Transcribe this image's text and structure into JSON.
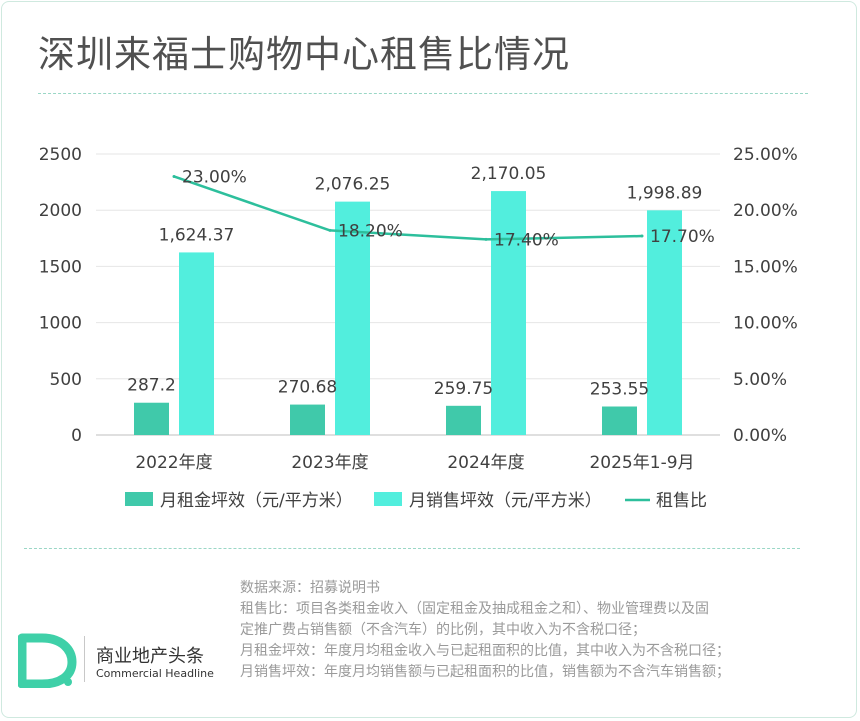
{
  "title": "深圳来福士购物中心租售比情况",
  "chart_data": {
    "type": "bar+line",
    "categories": [
      "2022年度",
      "2023年度",
      "2024年度",
      "2025年1-9月"
    ],
    "series": [
      {
        "name": "月租金坪效（元/平方米）",
        "type": "bar",
        "axis": "left",
        "color": "#40c9aa",
        "values": [
          287.2,
          270.68,
          259.75,
          253.55
        ],
        "labels": [
          "287.2",
          "270.68",
          "259.75",
          "253.55"
        ]
      },
      {
        "name": "月销售坪效（元/平方米）",
        "type": "bar",
        "axis": "left",
        "color": "#52eedd",
        "values": [
          1624.37,
          2076.25,
          2170.05,
          1998.89
        ],
        "labels": [
          "1,624.37",
          "2,076.25",
          "2,170.05",
          "1,998.89"
        ]
      },
      {
        "name": "租售比",
        "type": "line",
        "axis": "right",
        "color": "#2dbf9c",
        "values": [
          23.0,
          18.2,
          17.4,
          17.7
        ],
        "labels": [
          "23.00%",
          "18.20%",
          "17.40%",
          "17.70%"
        ]
      }
    ],
    "y_left": {
      "min": 0,
      "max": 2500,
      "ticks": [
        "0",
        "500",
        "1000",
        "1500",
        "2000",
        "2500"
      ]
    },
    "y_right": {
      "min": 0,
      "max": 25,
      "ticks": [
        "0.00%",
        "5.00%",
        "10.00%",
        "15.00%",
        "20.00%",
        "25.00%"
      ]
    },
    "legend_position": "bottom"
  },
  "notes": [
    "数据来源：招募说明书",
    "租售比：项目各类租金收入（固定租金及抽成租金之和）、物业管理费以及固",
    "定推广费占销售额（不含汽车）的比例，其中收入为不含税口径；",
    "月租金坪效：年度月均租金收入与已起租面积的比值，其中收入为不含税口径；",
    "月销售坪效：年度月均销售额与已起租面积的比值，销售额为不含汽车销售额；"
  ],
  "logo": {
    "name_cn": "商业地产头条",
    "name_en": "Commercial Headline"
  }
}
